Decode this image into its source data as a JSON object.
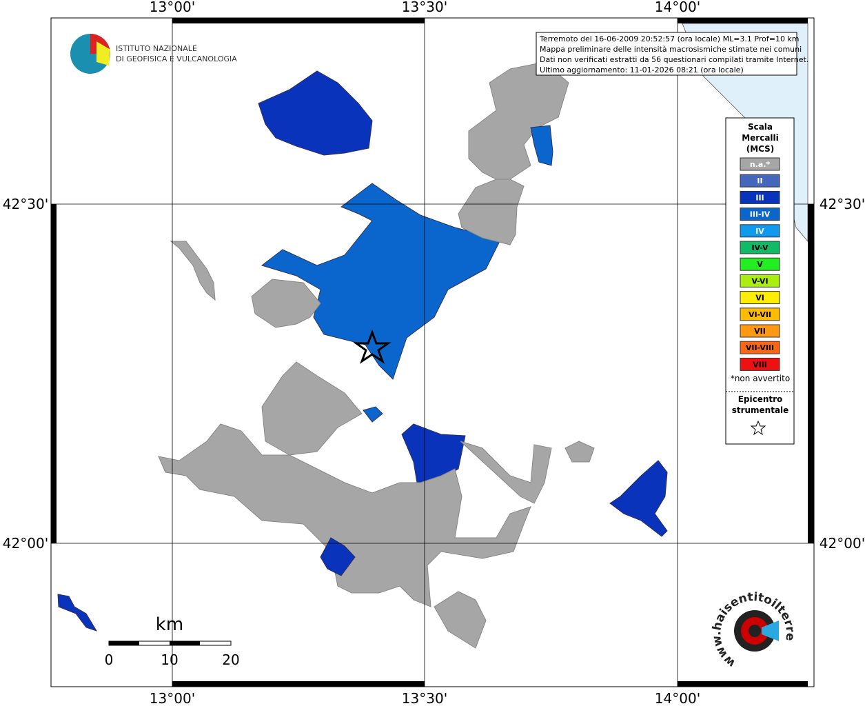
{
  "header": {
    "lines": [
      "ISTITUTO NAZIONALE",
      "DI GEOFISICA E VULCANOLOGIA"
    ]
  },
  "info": [
    "Terremoto del 16-06-2009 20:52:57 (ora locale) ML=3.1 Prof=10 km",
    "Mappa preliminare delle intensità macrosismiche stimate nei comuni",
    "Dati non verificati estratti da 56 questionari compilati tramite Internet.",
    "Ultimo aggiornamento: 11-01-2026 08:21 (ora locale)"
  ],
  "graticule": {
    "lon": [
      "13°00'",
      "13°30'",
      "14°00'"
    ],
    "lat": [
      "42°30'",
      "42°00'"
    ]
  },
  "legend": {
    "title": [
      "Scala",
      "Mercalli",
      "(MCS)"
    ],
    "items": [
      {
        "label": "n.a.*",
        "color": "#a6a6a6",
        "text": "#ffffff"
      },
      {
        "label": "II",
        "color": "#4466bb",
        "text": "#ffffff"
      },
      {
        "label": "III",
        "color": "#0a33bb",
        "text": "#ffffff"
      },
      {
        "label": "III-IV",
        "color": "#0a66cc",
        "text": "#ffffff"
      },
      {
        "label": "IV",
        "color": "#1199ee",
        "text": "#ffffff"
      },
      {
        "label": "IV-V",
        "color": "#11bb66",
        "text": "#000000"
      },
      {
        "label": "V",
        "color": "#22ee22",
        "text": "#000000"
      },
      {
        "label": "V-VI",
        "color": "#aaee11",
        "text": "#000000"
      },
      {
        "label": "VI",
        "color": "#ffee00",
        "text": "#000000"
      },
      {
        "label": "VI-VII",
        "color": "#ffbb00",
        "text": "#000000"
      },
      {
        "label": "VII",
        "color": "#ff9911",
        "text": "#000000"
      },
      {
        "label": "VII-VIII",
        "color": "#ff6611",
        "text": "#000000"
      },
      {
        "label": "VIII",
        "color": "#ee1111",
        "text": "#000000"
      }
    ],
    "note": "*non avvertito",
    "epicenter": [
      "Epicentro",
      "strumentale"
    ]
  },
  "scale": {
    "unit": "km",
    "labels": [
      "0",
      "10",
      "20"
    ]
  },
  "logo": "www.haisentitoilterremoto.it"
}
